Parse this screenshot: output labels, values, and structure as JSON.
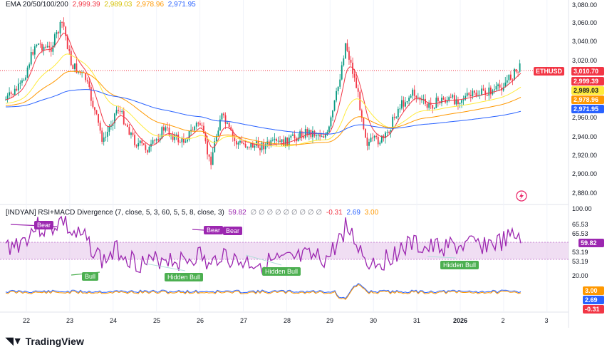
{
  "ema_legend": {
    "title": "EMA 20/50/100/200",
    "v20": "2,999.39",
    "v50": "2,989.03",
    "v100": "2,978.96",
    "v200": "2,971.95"
  },
  "indicator_legend": {
    "title": "[INDYAN] RSI+MACD Divergence (7, close, 5, 3, 60, 5, 5, 8, close, 3)",
    "rsi": "59.82",
    "zeros": "∅ ∅ ∅ ∅ ∅ ∅ ∅ ∅ ∅",
    "macd1": "-0.31",
    "macd2": "2.69",
    "macd3": "3.00"
  },
  "symbol_tag": "ETHUSD",
  "price_tag": "3,010.70",
  "ema_tags": [
    "2,999.39",
    "2,989.03",
    "2,978.96",
    "2,971.95"
  ],
  "price_axis": [
    "3,080.00",
    "3,060.00",
    "3,040.00",
    "3,020.00",
    "2,960.00",
    "2,940.00",
    "2,920.00",
    "2,900.00",
    "2,880.00"
  ],
  "rsi_axis": [
    "100.00",
    "65.53",
    "65.53",
    "53.19",
    "53.19",
    "20.00"
  ],
  "rsi_tag": "59.82",
  "macd_tags": [
    "3.00",
    "2.69",
    "-0.31"
  ],
  "time_axis": [
    "22",
    "23",
    "24",
    "25",
    "26",
    "27",
    "28",
    "29",
    "30",
    "31",
    "2026",
    "2",
    "3"
  ],
  "signals": [
    "Bear",
    "Bear",
    "Bear",
    "Bull",
    "Hidden Bull",
    "Hidden Bull",
    "Hidden Bull"
  ],
  "brand": "TradingView",
  "colors": {
    "up": "#089981",
    "down": "#f23645",
    "ema20": "#f23645",
    "ema50": "#ffeb3b",
    "ema100": "#ff9800",
    "ema200": "#2962ff",
    "rsi": "#9c27b0",
    "bull": "#4caf50"
  }
}
